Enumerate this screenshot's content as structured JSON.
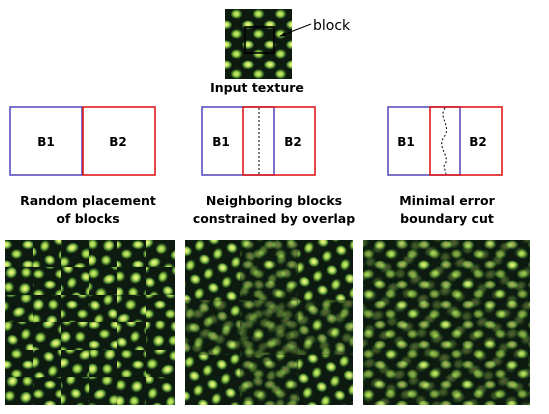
{
  "input": {
    "caption": "Input texture",
    "block_label": "block"
  },
  "panels": [
    {
      "b1": "B1",
      "b2": "B2",
      "caption_lines": [
        "Random placement",
        "of blocks"
      ]
    },
    {
      "b1": "B1",
      "b2": "B2",
      "caption_lines": [
        "Neighboring blocks",
        "constrained by overlap"
      ]
    },
    {
      "b1": "B1",
      "b2": "B2",
      "caption_lines": [
        "Minimal error",
        "boundary cut"
      ]
    }
  ],
  "colors": {
    "b1_border": "#5a4fc0",
    "b2_border": "#e01b1b",
    "texture_dark": "#0d1a10",
    "texture_mid": "#3d6a2a",
    "texture_light": "#c8e860",
    "texture_bright": "#f4f49a"
  }
}
